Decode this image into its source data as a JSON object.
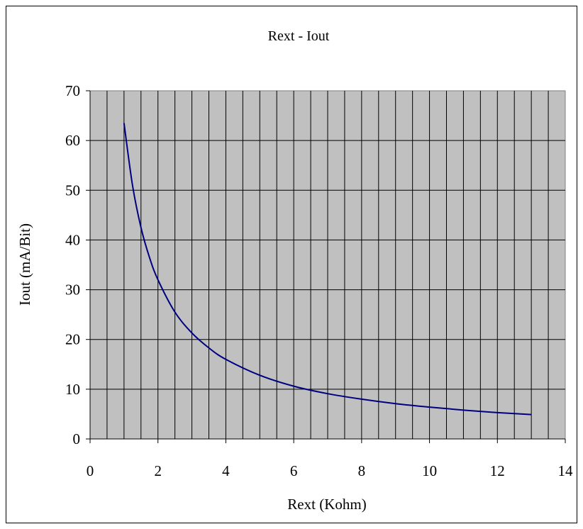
{
  "chart_data": {
    "type": "line",
    "title": "Rext - Iout",
    "xlabel": "Rext (Kohm)",
    "ylabel": "Iout (mA/Bit)",
    "xlim": [
      0,
      14
    ],
    "ylim": [
      0,
      70
    ],
    "xticks": [
      0,
      2,
      4,
      6,
      8,
      10,
      12,
      14
    ],
    "yticks": [
      0,
      10,
      20,
      30,
      40,
      50,
      60,
      70
    ],
    "grid": true,
    "plot_background": "#c0c0c0",
    "series": [
      {
        "color": "#000080",
        "x": [
          1,
          1.25,
          1.5,
          1.75,
          2,
          2.5,
          3,
          3.5,
          4,
          5,
          6,
          7,
          8,
          9,
          10,
          11,
          12,
          13
        ],
        "y": [
          63.5,
          51,
          42.5,
          36.5,
          32,
          25.5,
          21.3,
          18.3,
          16,
          12.8,
          10.6,
          9.1,
          8,
          7.1,
          6.4,
          5.8,
          5.3,
          4.9
        ]
      }
    ]
  }
}
